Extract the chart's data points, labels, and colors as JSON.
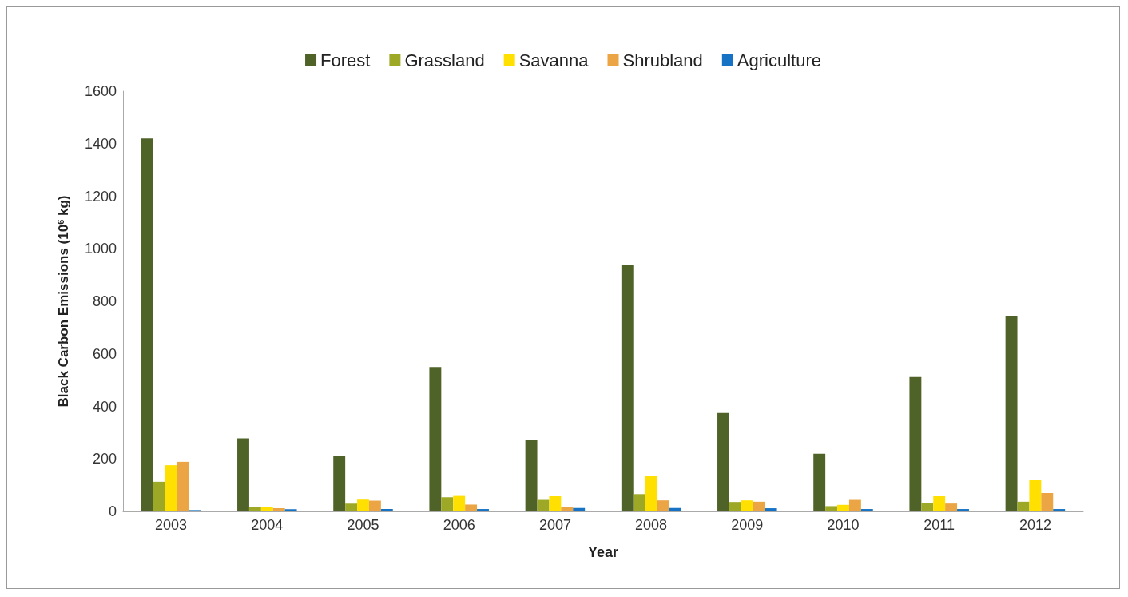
{
  "chart_data": {
    "type": "bar",
    "xlabel": "Year",
    "ylabel": "Black Carbon Emissions (10$^{6}$ kg)",
    "categories": [
      "2003",
      "2004",
      "2005",
      "2006",
      "2007",
      "2008",
      "2009",
      "2010",
      "2011",
      "2012"
    ],
    "series": [
      {
        "name": "Forest",
        "color": "#4f6228",
        "values": [
          1420,
          278,
          210,
          550,
          273,
          940,
          375,
          220,
          512,
          742
        ]
      },
      {
        "name": "Grassland",
        "color": "#9ea827",
        "values": [
          113,
          16,
          30,
          54,
          44,
          66,
          36,
          20,
          33,
          37
        ]
      },
      {
        "name": "Savanna",
        "color": "#ffe000",
        "values": [
          176,
          16,
          45,
          62,
          59,
          136,
          42,
          25,
          59,
          120
        ]
      },
      {
        "name": "Shrubland",
        "color": "#eba545",
        "values": [
          189,
          12,
          41,
          26,
          18,
          42,
          37,
          44,
          30,
          70
        ]
      },
      {
        "name": "Agriculture",
        "color": "#1672c4",
        "values": [
          5,
          8,
          9,
          9,
          13,
          13,
          12,
          9,
          9,
          9
        ]
      }
    ],
    "ylim": [
      0,
      1600
    ],
    "yticks": [
      0,
      200,
      400,
      600,
      800,
      1000,
      1200,
      1400,
      1600
    ],
    "grid": false,
    "legend": "top"
  }
}
